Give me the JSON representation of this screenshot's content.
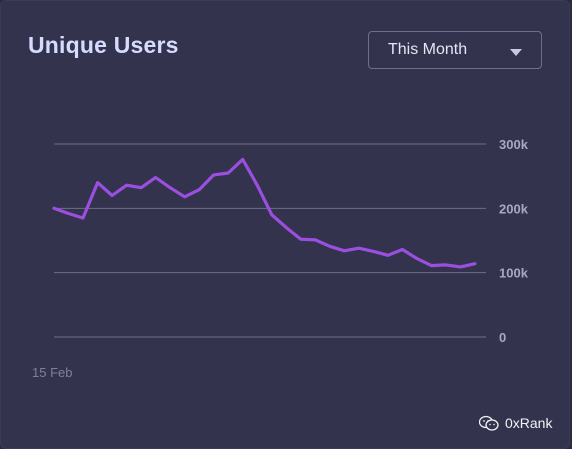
{
  "card": {
    "title": "Unique Users",
    "period_select": {
      "selected": "This Month"
    }
  },
  "watermark": {
    "text": "0xRank"
  },
  "colors": {
    "line": "#9b4fe0",
    "grid": "#6d6f8a",
    "background": "#33334d"
  },
  "chart_data": {
    "type": "line",
    "title": "Unique Users",
    "xlabel": "",
    "ylabel": "",
    "x_tick_labels": [
      "15 Feb"
    ],
    "y_ticks": [
      0,
      100000,
      200000,
      300000
    ],
    "y_tick_labels": [
      "0",
      "100k",
      "200k",
      "300k"
    ],
    "ylim": [
      0,
      300000
    ],
    "grid": true,
    "series": [
      {
        "values": [
          200000,
          192000,
          185000,
          240000,
          220000,
          236000,
          232000,
          248000,
          232000,
          218000,
          229000,
          252000,
          255000,
          276000,
          236000,
          190000,
          170000,
          152000,
          151000,
          141000,
          134000,
          138000,
          133000,
          127000,
          136000,
          122000,
          111000,
          112000,
          109000,
          114000
        ]
      }
    ]
  }
}
